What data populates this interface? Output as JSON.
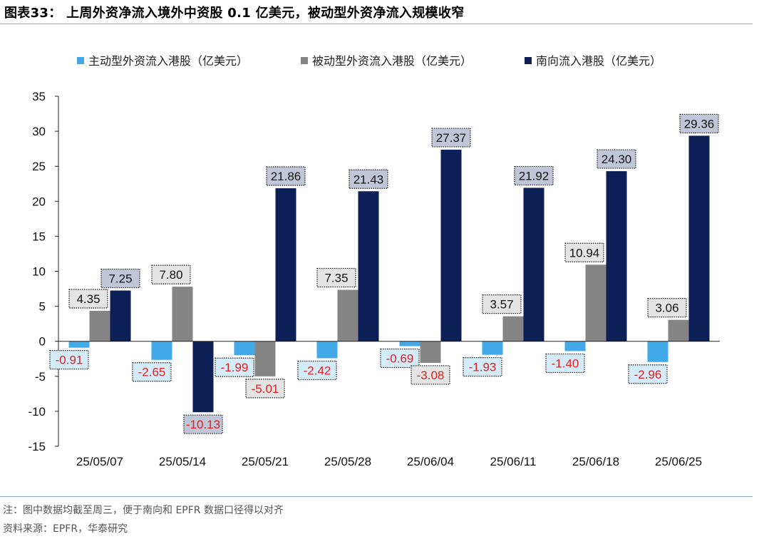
{
  "header": {
    "title": "图表33： 上周外资净流入境外中资股 0.1 亿美元，被动型外资净流入规模收窄"
  },
  "footer": {
    "note": "注：图中数据均截至周三，便于南向和 EPFR 数据口径得以对齐",
    "source": "资料来源：EPFR，华泰研究"
  },
  "chart_data": {
    "type": "bar",
    "title": "",
    "xlabel": "",
    "ylabel": "",
    "ylim": [
      -15,
      35
    ],
    "yticks": [
      -15,
      -10,
      -5,
      0,
      5,
      10,
      15,
      20,
      25,
      30,
      35
    ],
    "grid": false,
    "legend_position": "top",
    "categories": [
      "25/05/07",
      "25/05/14",
      "25/05/21",
      "25/05/28",
      "25/06/04",
      "25/06/11",
      "25/06/18",
      "25/06/25"
    ],
    "series": [
      {
        "name": "主动型外资流入港股（亿美元）",
        "color": "#41A9E8",
        "label_fill": "#D4ECFA",
        "values": [
          -0.91,
          -2.65,
          -1.99,
          -2.42,
          -0.69,
          -1.93,
          -1.4,
          -2.96
        ]
      },
      {
        "name": "被动型外资流入港股（亿美元）",
        "color": "#858585",
        "label_fill": "#E4E4E4",
        "values": [
          4.35,
          7.8,
          -5.01,
          7.35,
          -3.08,
          3.57,
          10.94,
          3.06
        ]
      },
      {
        "name": "南向流入港股（亿美元）",
        "color": "#0C1F56",
        "label_fill": "#C0C6D8",
        "values": [
          7.25,
          -10.13,
          21.86,
          21.43,
          27.37,
          21.92,
          24.3,
          29.36
        ]
      }
    ],
    "data_labels": {
      "positive_color": "#111111",
      "negative_color": "#E02020"
    }
  }
}
